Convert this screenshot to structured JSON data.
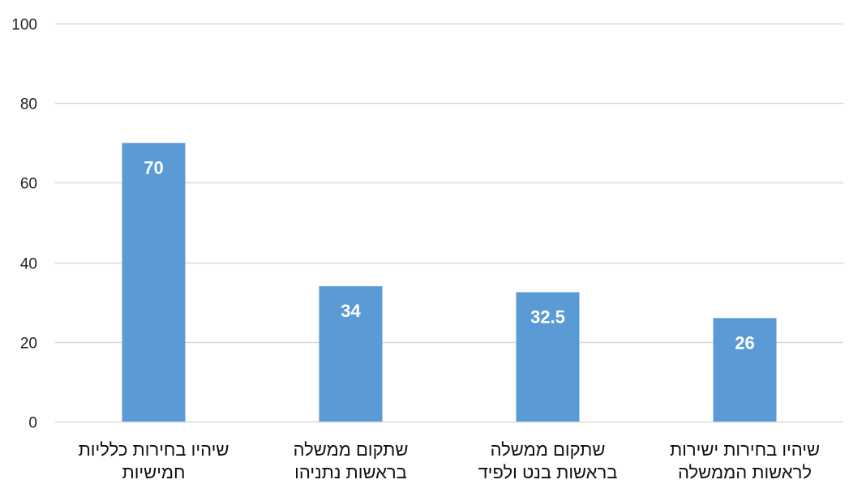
{
  "chart_data": {
    "type": "bar",
    "categories": [
      [
        "שיהיו בחירות כלליות",
        "חמישיות"
      ],
      [
        "שתקום ממשלה",
        "בראשות נתניהו"
      ],
      [
        "שתקום ממשלה",
        "בראשות בנט ולפיד"
      ],
      [
        "שיהיו בחירות ישירות",
        "לראשות הממשלה"
      ]
    ],
    "values": [
      70,
      34,
      32.5,
      26
    ],
    "data_labels": [
      "70",
      "34",
      "32.5",
      "26"
    ],
    "ylim": [
      0,
      100
    ],
    "yticks": [
      0,
      20,
      40,
      60,
      80,
      100
    ],
    "grid": true,
    "bar_color": "#5B9BD5",
    "gridline_color": "#D9D9D9",
    "title": "",
    "xlabel": "",
    "ylabel": ""
  }
}
